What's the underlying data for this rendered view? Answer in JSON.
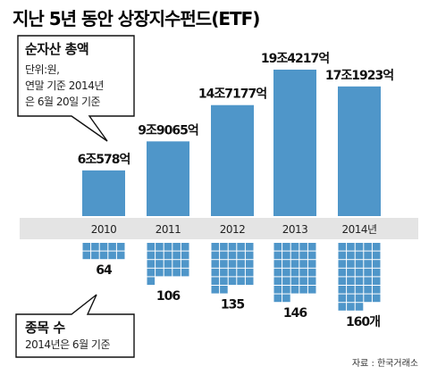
{
  "title": "지난 5년 동안 상장지수펀드(ETF)",
  "source": "자료 : 한국거래소",
  "colors": {
    "bar": "#4f96c9",
    "band": "#e4e4e4",
    "square": "#4f96c9"
  },
  "callout_assets": {
    "heading": "순자산 총액",
    "lines": [
      "단위:원,",
      "연말 기준 2014년",
      "은 6월 20일 기준"
    ]
  },
  "callout_count": {
    "heading": "종목 수",
    "lines": [
      "2014년은 6월 기준"
    ]
  },
  "chart_data": {
    "type": "bar",
    "categories": [
      "2010",
      "2011",
      "2012",
      "2013",
      "2014년"
    ],
    "series": [
      {
        "name": "순자산 총액",
        "values": [
          60578,
          99065,
          147177,
          194217,
          171923
        ],
        "labels": [
          "6조578억",
          "9조9065억",
          "14조7177억",
          "19조4217억",
          "17조1923억"
        ]
      },
      {
        "name": "종목 수",
        "values": [
          64,
          106,
          135,
          146,
          160
        ],
        "labels": [
          "64",
          "106",
          "135",
          "146",
          "160개"
        ]
      }
    ]
  }
}
